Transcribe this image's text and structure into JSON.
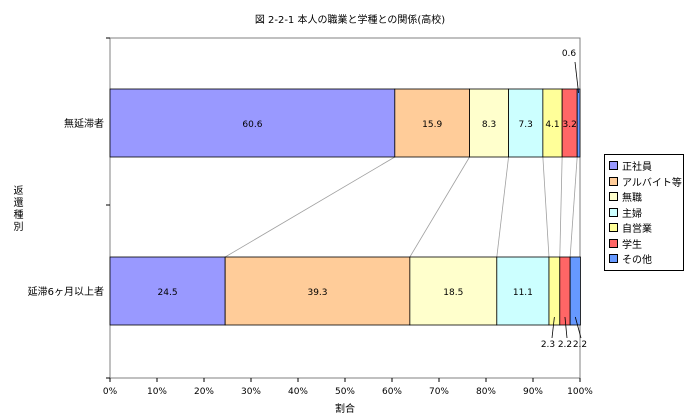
{
  "chart_data": {
    "type": "bar",
    "stacked": true,
    "orientation": "horizontal",
    "title": "図 2-2-1 本人の職業と学種との関係(高校)",
    "xlabel": "割合",
    "ylabel": "返還種別",
    "xlim": [
      0,
      100
    ],
    "x_ticks": [
      "0%",
      "10%",
      "20%",
      "30%",
      "40%",
      "50%",
      "60%",
      "70%",
      "80%",
      "90%",
      "100%"
    ],
    "categories": [
      "無延滞者",
      "延滞6ヶ月以上者"
    ],
    "series": [
      {
        "name": "正社員",
        "values": [
          60.6,
          24.5
        ],
        "color": "#9999ff"
      },
      {
        "name": "アルバイト等",
        "values": [
          15.9,
          39.3
        ],
        "color": "#ffcc99"
      },
      {
        "name": "無職",
        "values": [
          8.3,
          18.5
        ],
        "color": "#ffffcc"
      },
      {
        "name": "主婦",
        "values": [
          7.3,
          11.1
        ],
        "color": "#ccffff"
      },
      {
        "name": "自営業",
        "values": [
          4.1,
          2.3
        ],
        "color": "#ffff99"
      },
      {
        "name": "学生",
        "values": [
          3.2,
          2.2
        ],
        "color": "#ff6666"
      },
      {
        "name": "その他",
        "values": [
          0.6,
          2.2
        ],
        "color": "#6699ff"
      }
    ],
    "legend_position": "right",
    "grid": false
  }
}
